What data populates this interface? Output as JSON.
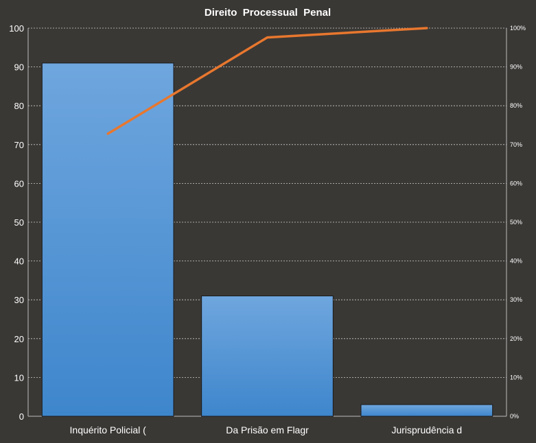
{
  "chart_data": {
    "type": "bar",
    "title": "Direito  Processual  Penal",
    "categories": [
      "Inquérito  Policial  (",
      "Da Prisão em Flagr",
      "Jurisprudência  d"
    ],
    "series": [
      {
        "type": "bar",
        "values": [
          91,
          31,
          3
        ]
      },
      {
        "type": "line",
        "axis": "right",
        "values": [
          72.8,
          97.6,
          100
        ]
      }
    ],
    "ylim": [
      0,
      100
    ],
    "y_ticks": [
      "0",
      "10",
      "20",
      "30",
      "40",
      "50",
      "60",
      "70",
      "80",
      "90",
      "100"
    ],
    "y2lim": [
      0,
      100
    ],
    "y2_ticks": [
      "0%",
      "10%",
      "20%",
      "30%",
      "40%",
      "50%",
      "60%",
      "70%",
      "80%",
      "90%",
      "100%"
    ],
    "grid": true,
    "legend": "none",
    "colors": {
      "background": "#3a3835",
      "bar_top": "#6fa6de",
      "bar_bottom": "#3e86cc",
      "line": "#e8772e",
      "grid": "#cfcfcf",
      "text": "#ffffff"
    }
  }
}
